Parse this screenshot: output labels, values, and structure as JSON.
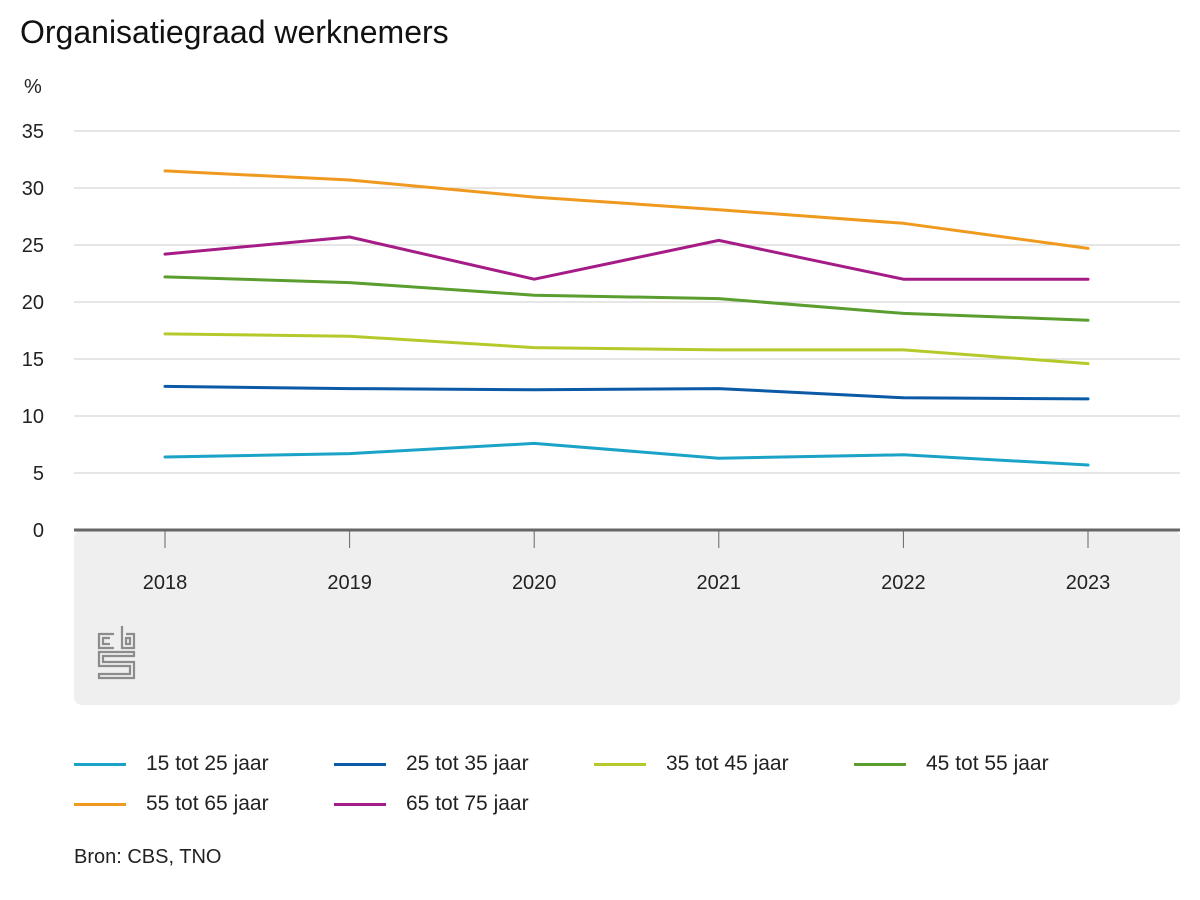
{
  "header": {
    "title": "Organisatiegraad werknemers",
    "unit": "%"
  },
  "footer": {
    "source": "Bron: CBS, TNO"
  },
  "colors": {
    "grid": "#cccccc",
    "axis": "#666666",
    "panel": "#efefef",
    "logo": "#8c8c8c"
  },
  "logo": {
    "icon": "cbs-logo-icon"
  },
  "chart_data": {
    "type": "line",
    "x": [
      "2018",
      "2019",
      "2020",
      "2021",
      "2022",
      "2023"
    ],
    "ylim": [
      0,
      35
    ],
    "yticks": [
      0,
      5,
      10,
      15,
      20,
      25,
      30,
      35
    ],
    "ylabel": "%",
    "grid": true,
    "legend": "bottom",
    "series": [
      {
        "name": "15 tot 25 jaar",
        "color": "#1aa3c7",
        "values": [
          6.4,
          6.7,
          7.6,
          6.3,
          6.6,
          5.7
        ]
      },
      {
        "name": "25 tot 35 jaar",
        "color": "#0b5aa7",
        "values": [
          12.6,
          12.4,
          12.3,
          12.4,
          11.6,
          11.5
        ]
      },
      {
        "name": "35 tot 45 jaar",
        "color": "#b5c92a",
        "values": [
          17.2,
          17.0,
          16.0,
          15.8,
          15.8,
          14.6
        ]
      },
      {
        "name": "45 tot 55 jaar",
        "color": "#5a9e2f",
        "values": [
          22.2,
          21.7,
          20.6,
          20.3,
          19.0,
          18.4
        ]
      },
      {
        "name": "55 tot 65 jaar",
        "color": "#ef9a1e",
        "values": [
          31.5,
          30.7,
          29.2,
          28.1,
          26.9,
          24.7
        ]
      },
      {
        "name": "65 tot 75 jaar",
        "color": "#a51c87",
        "values": [
          24.2,
          25.7,
          22.0,
          25.4,
          22.0,
          22.0
        ]
      }
    ]
  }
}
